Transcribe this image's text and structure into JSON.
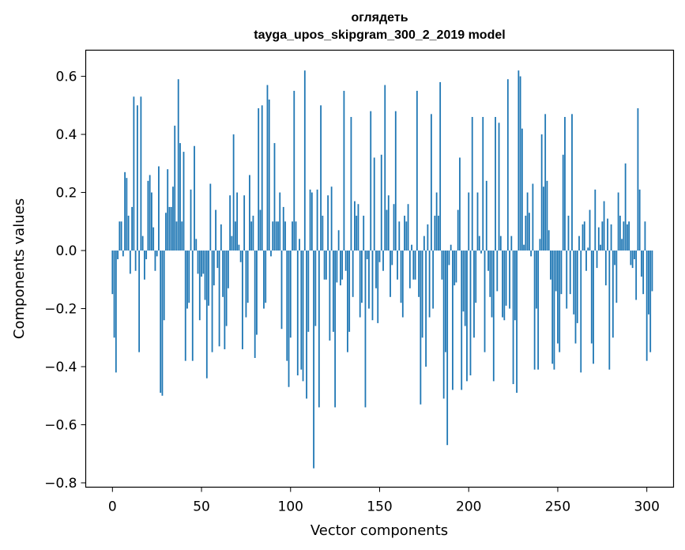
{
  "chart_data": {
    "type": "bar",
    "title": "оглядеть",
    "subtitle": "tayga_upos_skipgram_300_2_2019 model",
    "xlabel": "Vector components",
    "ylabel": "Components values",
    "xlim": [
      -15,
      315
    ],
    "ylim": [
      -0.815,
      0.69
    ],
    "xticks": [
      0,
      50,
      100,
      150,
      200,
      250,
      300
    ],
    "yticks": [
      -0.8,
      -0.6,
      -0.4,
      -0.2,
      0.0,
      0.2,
      0.4,
      0.6
    ],
    "ytick_labels": [
      "−0.8",
      "−0.6",
      "−0.4",
      "−0.2",
      "0.0",
      "0.2",
      "0.4",
      "0.6"
    ],
    "bar_color": "#1f77b4",
    "grid": false,
    "legend": "none",
    "x_start": 0,
    "values": [
      -0.15,
      -0.3,
      -0.42,
      -0.03,
      0.1,
      0.1,
      -0.02,
      0.27,
      0.25,
      0.12,
      -0.08,
      0.15,
      0.53,
      -0.07,
      0.5,
      -0.35,
      0.53,
      0.05,
      -0.1,
      -0.03,
      0.24,
      0.26,
      0.2,
      0.08,
      -0.07,
      -0.02,
      0.29,
      -0.49,
      -0.5,
      -0.24,
      0.13,
      0.28,
      0.15,
      0.15,
      0.22,
      0.43,
      0.1,
      0.59,
      0.37,
      0.1,
      0.34,
      -0.38,
      -0.2,
      -0.18,
      0.21,
      -0.38,
      0.36,
      0.04,
      -0.08,
      -0.24,
      -0.09,
      -0.08,
      -0.17,
      -0.44,
      -0.19,
      0.23,
      -0.35,
      -0.12,
      0.14,
      -0.06,
      -0.33,
      0.09,
      -0.16,
      -0.34,
      -0.26,
      -0.13,
      0.19,
      0.05,
      0.4,
      0.1,
      0.2,
      0.02,
      -0.04,
      -0.34,
      0.19,
      -0.23,
      -0.18,
      0.26,
      0.1,
      0.12,
      -0.37,
      -0.29,
      0.49,
      0.14,
      0.5,
      -0.2,
      -0.18,
      0.57,
      0.52,
      -0.02,
      0.1,
      0.37,
      0.1,
      0.1,
      0.2,
      -0.27,
      0.15,
      0.1,
      -0.38,
      -0.47,
      -0.3,
      0.1,
      0.55,
      0.1,
      -0.43,
      0.04,
      -0.41,
      -0.45,
      0.62,
      -0.51,
      -0.28,
      0.21,
      0.2,
      -0.75,
      -0.26,
      0.21,
      -0.54,
      0.5,
      0.12,
      -0.1,
      -0.1,
      0.19,
      -0.31,
      0.22,
      -0.28,
      -0.54,
      -0.11,
      0.07,
      -0.12,
      -0.1,
      0.55,
      -0.07,
      -0.35,
      -0.28,
      0.46,
      -0.16,
      0.17,
      0.12,
      0.16,
      -0.23,
      -0.18,
      0.12,
      -0.54,
      -0.03,
      -0.2,
      0.48,
      -0.24,
      0.32,
      -0.13,
      -0.25,
      -0.04,
      0.33,
      -0.07,
      0.57,
      0.14,
      0.19,
      -0.16,
      -0.05,
      0.16,
      0.48,
      -0.1,
      0.1,
      -0.18,
      -0.23,
      0.12,
      0.1,
      0.16,
      -0.13,
      0.02,
      -0.1,
      -0.1,
      0.55,
      -0.16,
      -0.53,
      -0.3,
      0.05,
      -0.4,
      0.09,
      -0.23,
      0.47,
      -0.2,
      0.12,
      0.2,
      0.12,
      0.58,
      -0.1,
      -0.51,
      -0.35,
      -0.67,
      -0.05,
      0.02,
      -0.48,
      -0.12,
      -0.11,
      0.14,
      0.32,
      -0.48,
      -0.21,
      -0.26,
      -0.45,
      0.2,
      -0.43,
      0.46,
      -0.3,
      -0.18,
      0.2,
      0.05,
      -0.01,
      0.46,
      -0.35,
      0.24,
      -0.07,
      -0.16,
      -0.23,
      -0.45,
      0.46,
      -0.14,
      0.44,
      0.05,
      -0.23,
      -0.24,
      -0.19,
      0.59,
      -0.2,
      0.05,
      -0.46,
      -0.24,
      -0.49,
      0.62,
      0.6,
      0.42,
      0.02,
      0.12,
      0.2,
      0.13,
      -0.02,
      0.23,
      -0.41,
      -0.2,
      -0.41,
      0.04,
      0.4,
      0.22,
      0.47,
      0.24,
      0.07,
      -0.1,
      -0.39,
      -0.41,
      -0.14,
      -0.32,
      -0.35,
      -0.15,
      0.33,
      0.46,
      -0.2,
      0.12,
      -0.15,
      0.47,
      -0.22,
      -0.32,
      -0.25,
      0.05,
      -0.42,
      0.09,
      0.1,
      -0.07,
      0.01,
      0.14,
      -0.32,
      -0.39,
      0.21,
      -0.06,
      0.08,
      0.02,
      0.1,
      0.17,
      -0.12,
      0.11,
      -0.41,
      0.09,
      -0.3,
      -0.05,
      -0.18,
      0.2,
      0.12,
      0.04,
      0.1,
      0.3,
      0.09,
      0.1,
      -0.05,
      -0.06,
      -0.03,
      -0.17,
      0.49,
      0.21,
      -0.09,
      -0.15,
      0.1,
      -0.38,
      -0.22,
      -0.35,
      -0.14
    ]
  }
}
